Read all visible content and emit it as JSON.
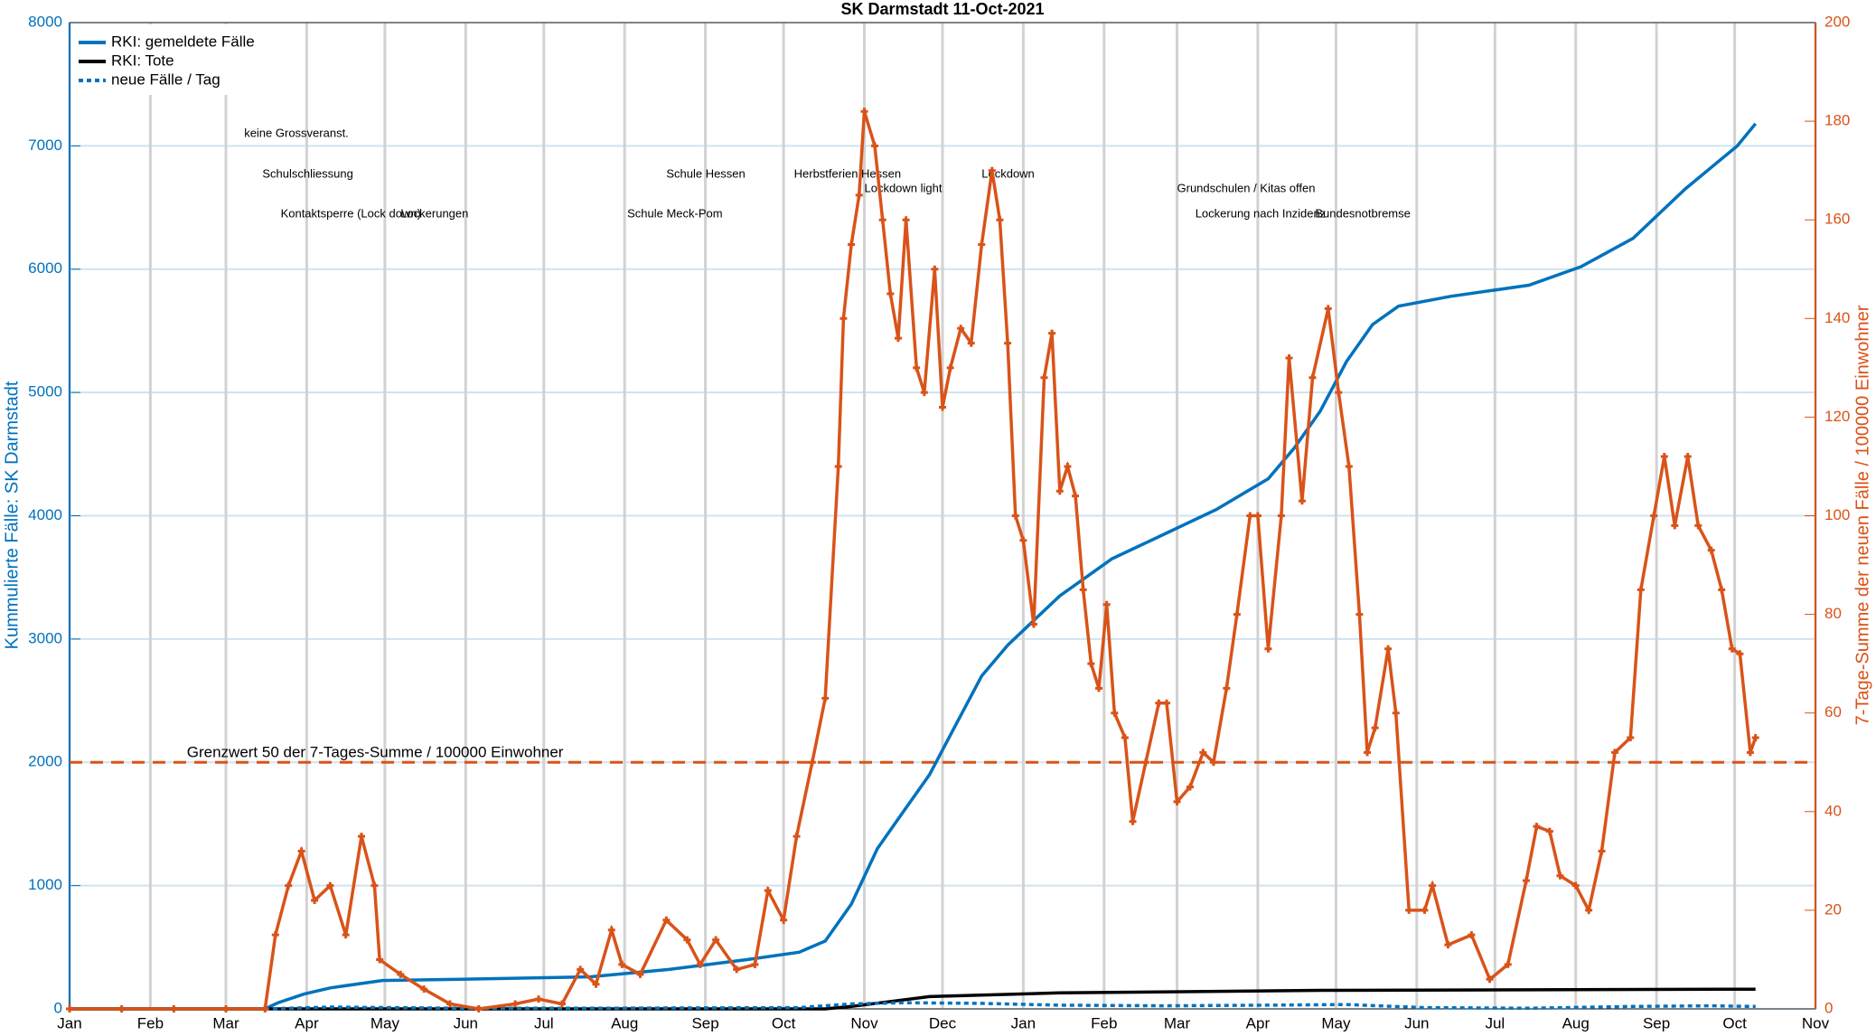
{
  "chart_data": {
    "type": "line",
    "title": "SK Darmstadt 11-Oct-2021",
    "ylabel": "Kummulierte Fälle: SK Darmstadt",
    "y2label": "7-Tage-Summe der neuen Fälle  / 100000 Einwohner",
    "xlim": [
      0,
      670
    ],
    "xticks": [
      {
        "value": 0,
        "label": "Jan"
      },
      {
        "value": 31,
        "label": "Feb"
      },
      {
        "value": 60,
        "label": "Mar"
      },
      {
        "value": 91,
        "label": "Apr"
      },
      {
        "value": 121,
        "label": "May"
      },
      {
        "value": 152,
        "label": "Jun"
      },
      {
        "value": 182,
        "label": "Jul"
      },
      {
        "value": 213,
        "label": "Aug"
      },
      {
        "value": 244,
        "label": "Sep"
      },
      {
        "value": 274,
        "label": "Oct"
      },
      {
        "value": 305,
        "label": "Nov"
      },
      {
        "value": 335,
        "label": "Dec"
      },
      {
        "value": 366,
        "label": "Jan"
      },
      {
        "value": 397,
        "label": "Feb"
      },
      {
        "value": 425,
        "label": "Mar"
      },
      {
        "value": 456,
        "label": "Apr"
      },
      {
        "value": 486,
        "label": "May"
      },
      {
        "value": 517,
        "label": "Jun"
      },
      {
        "value": 547,
        "label": "Jul"
      },
      {
        "value": 578,
        "label": "Aug"
      },
      {
        "value": 609,
        "label": "Sep"
      },
      {
        "value": 639,
        "label": "Oct"
      },
      {
        "value": 670,
        "label": "Nov"
      }
    ],
    "ylim": [
      0,
      8000
    ],
    "yticks": [
      0,
      1000,
      2000,
      3000,
      4000,
      5000,
      6000,
      7000,
      8000
    ],
    "y2lim": [
      0,
      200
    ],
    "y2ticks": [
      0,
      20,
      40,
      60,
      80,
      100,
      120,
      140,
      160,
      180,
      200
    ],
    "grid": true,
    "legend": "upper left",
    "series": [
      {
        "name": "RKI: gemeldete Fälle",
        "color": "#0072bd",
        "axis": "y",
        "x": [
          0,
          75,
          80,
          90,
          100,
          120,
          150,
          200,
          230,
          260,
          280,
          290,
          300,
          310,
          320,
          330,
          340,
          350,
          360,
          370,
          380,
          390,
          400,
          420,
          440,
          460,
          470,
          480,
          490,
          500,
          510,
          530,
          560,
          580,
          600,
          620,
          640,
          647
        ],
        "values": [
          0,
          0,
          50,
          120,
          170,
          230,
          240,
          260,
          320,
          400,
          460,
          550,
          850,
          1300,
          1600,
          1900,
          2300,
          2700,
          2950,
          3150,
          3350,
          3500,
          3650,
          3850,
          4050,
          4300,
          4550,
          4850,
          5250,
          5550,
          5700,
          5780,
          5870,
          6020,
          6250,
          6650,
          7000,
          7180
        ]
      },
      {
        "name": "RKI: Tote",
        "color": "#000000",
        "axis": "y",
        "x": [
          0,
          290,
          300,
          330,
          380,
          480,
          647
        ],
        "values": [
          0,
          0,
          20,
          100,
          130,
          150,
          160
        ]
      },
      {
        "name": "neue Fälle / Tag",
        "color": "#0072bd",
        "axis": "y",
        "dashed": true,
        "x": [
          0,
          75,
          100,
          150,
          200,
          280,
          300,
          320,
          350,
          380,
          420,
          460,
          490,
          520,
          560,
          600,
          630,
          647
        ],
        "values": [
          0,
          0,
          15,
          5,
          5,
          10,
          40,
          50,
          45,
          30,
          25,
          30,
          35,
          10,
          5,
          20,
          25,
          20
        ]
      },
      {
        "name": "7-Tage-Summe",
        "color": "#d95319",
        "axis": "y2",
        "markers": true,
        "x": [
          0,
          20,
          40,
          60,
          75,
          79,
          84,
          89,
          94,
          100,
          106,
          112,
          117,
          119,
          127,
          136,
          146,
          157,
          171,
          180,
          189,
          196,
          202,
          208,
          212,
          219,
          229,
          237,
          242,
          248,
          256,
          263,
          268,
          274,
          279,
          285,
          290,
          295,
          297,
          300,
          303,
          305,
          309,
          312,
          315,
          318,
          321,
          325,
          328,
          332,
          335,
          338,
          342,
          346,
          350,
          354,
          357,
          360,
          363,
          366,
          370,
          374,
          377,
          380,
          383,
          386,
          389,
          392,
          395,
          398,
          401,
          405,
          408,
          413,
          418,
          421,
          425,
          430,
          435,
          439,
          444,
          448,
          453,
          456,
          460,
          465,
          468,
          473,
          477,
          483,
          487,
          491,
          495,
          498,
          501,
          506,
          509,
          514,
          520,
          523,
          529,
          538,
          545,
          552,
          559,
          563,
          568,
          572,
          578,
          583,
          588,
          593,
          599,
          603,
          608,
          612,
          616,
          621,
          625,
          630,
          634,
          638,
          641,
          645,
          647
        ],
        "values": [
          0,
          0,
          0,
          0,
          0,
          15,
          25,
          32,
          22,
          25,
          15,
          35,
          25,
          10,
          7,
          4,
          1,
          0,
          1,
          2,
          1,
          8,
          5,
          16,
          9,
          7,
          18,
          14,
          9,
          14,
          8,
          9,
          24,
          18,
          35,
          50,
          63,
          110,
          140,
          155,
          165,
          182,
          175,
          160,
          145,
          136,
          160,
          130,
          125,
          150,
          122,
          130,
          138,
          135,
          155,
          170,
          160,
          135,
          100,
          95,
          78,
          128,
          137,
          105,
          110,
          104,
          85,
          70,
          65,
          82,
          60,
          55,
          38,
          50,
          62,
          62,
          42,
          45,
          52,
          50,
          65,
          80,
          100,
          100,
          73,
          100,
          132,
          103,
          128,
          142,
          125,
          110,
          80,
          52,
          57,
          73,
          60,
          20,
          20,
          25,
          13,
          15,
          6,
          9,
          26,
          37,
          36,
          27,
          25,
          20,
          32,
          52,
          55,
          85,
          100,
          112,
          98,
          112,
          98,
          93,
          85,
          73,
          72,
          52,
          55
        ]
      }
    ],
    "hline": {
      "value": 50,
      "axis": "y2",
      "label": "Grenzwert 50 der 7-Tages-Summe / 100000 Einwohner"
    },
    "annotations": [
      {
        "x": 67,
        "text": "keine Grossveranst."
      },
      {
        "x": 74,
        "text": "Schulschliessung"
      },
      {
        "x": 81,
        "text": "Kontaktsperre (Lock down)"
      },
      {
        "x": 127,
        "text": "Lockerungen"
      },
      {
        "x": 214,
        "text": "Schule Meck-Pom"
      },
      {
        "x": 229,
        "text": "Schule Hessen"
      },
      {
        "x": 278,
        "text": "Herbstferien Hessen"
      },
      {
        "x": 305,
        "text": "Lockdown light"
      },
      {
        "x": 350,
        "text": "Lockdown"
      },
      {
        "x": 425,
        "text": "Grundschulen / Kitas offen"
      },
      {
        "x": 432,
        "text": "Lockerung nach Inzidenz"
      },
      {
        "x": 478,
        "text": "Bundesnotbremse"
      }
    ]
  }
}
